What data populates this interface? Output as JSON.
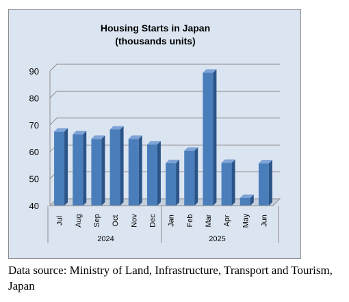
{
  "chart_data": {
    "type": "bar",
    "title": "Housing Starts in Japan",
    "subtitle": "(thousands units)",
    "categories": [
      "Jul",
      "Aug",
      "Sep",
      "Oct",
      "Nov",
      "Dec",
      "Jan",
      "Feb",
      "Mar",
      "Apr",
      "May",
      "Jun"
    ],
    "groups": [
      {
        "label": "2024",
        "count": 6
      },
      {
        "label": "2025",
        "count": 6
      }
    ],
    "values": [
      67.5,
      66.5,
      64.8,
      68.3,
      64.8,
      62.7,
      55.8,
      60.4,
      89.4,
      55.9,
      42.9,
      55.7
    ],
    "ylim": [
      40,
      90
    ],
    "yticks": [
      40,
      50,
      60,
      70,
      80,
      90
    ],
    "grid": true,
    "legend": "none",
    "bar_color": "#4a7ebb"
  },
  "source_note": "Data source: Ministry of Land, Infrastructure, Transport and Tourism, Japan"
}
